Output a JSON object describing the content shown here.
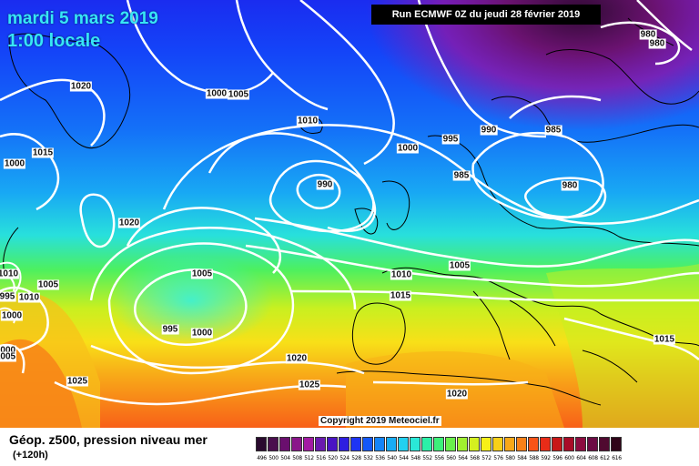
{
  "header": {
    "date": "mardi 5 mars 2019",
    "time": "1:00 locale",
    "run": "Run ECMWF 0Z du jeudi 28 février 2019"
  },
  "copyright": "Copyright 2019 Meteociel.fr",
  "footer": {
    "title": "Géop. z500, pression niveau mer",
    "lead": "(+120h)"
  },
  "isobar_labels": [
    "1020",
    "1015",
    "1000",
    "1005",
    "1010",
    "1000",
    "995",
    "990",
    "985",
    "980",
    "980",
    "990",
    "985",
    "980",
    "1020",
    "1005",
    "995",
    "1000",
    "1010",
    "1015",
    "1005",
    "1005",
    "1020",
    "1025",
    "1025",
    "1020",
    "1015",
    "1010",
    "1000",
    "995",
    "1000",
    "1010",
    "1005",
    "1000"
  ],
  "scale": {
    "labels": [
      "496",
      "500",
      "504",
      "508",
      "512",
      "516",
      "520",
      "524",
      "528",
      "532",
      "536",
      "540",
      "544",
      "548",
      "552",
      "556",
      "560",
      "564",
      "568",
      "572",
      "576",
      "580",
      "584",
      "588",
      "592",
      "596",
      "600",
      "604",
      "608",
      "612",
      "616"
    ],
    "colors": [
      "#2a0a2e",
      "#4a0f4e",
      "#6a0f6e",
      "#8a168a",
      "#a31aa3",
      "#6a1aaf",
      "#4a14c4",
      "#2e1ee0",
      "#1e34f4",
      "#1458f8",
      "#1484f8",
      "#18acf4",
      "#22d0f0",
      "#2ae8d8",
      "#2cf0a8",
      "#3cf07a",
      "#6af04c",
      "#a0f030",
      "#d4f020",
      "#f8f018",
      "#f8d018",
      "#f8a818",
      "#f88018",
      "#f85418",
      "#e82c18",
      "#c81818",
      "#a80c28",
      "#8c0c40",
      "#6c0c44",
      "#500a30",
      "#300418"
    ]
  }
}
